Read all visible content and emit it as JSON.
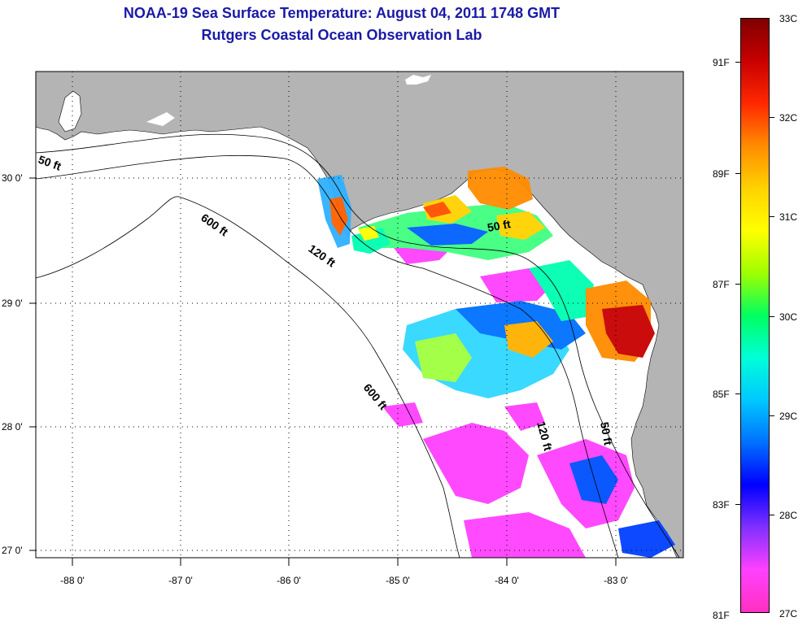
{
  "header": {
    "title_line1": "NOAA-19 Sea Surface Temperature:  August 04, 2011 1748 GMT",
    "title_line2": "Rutgers Coastal Ocean Observation Lab"
  },
  "map": {
    "lat_labels": [
      "30 0'",
      "29 0'",
      "28 0'",
      "27 0'"
    ],
    "lon_labels": [
      "-88 0'",
      "-87 0'",
      "-86 0'",
      "-85 0'",
      "-84 0'",
      "-83 0'"
    ],
    "contour_labels": {
      "c50_west": "50 ft",
      "c600_north": "600 ft",
      "c120_north": "120 ft",
      "c50_east": "50 ft",
      "c600_south": "600 ft",
      "c120_south": "120 ft",
      "c50_south": "50 ft"
    },
    "colors": {
      "land": "#b4b4b4",
      "ocean_nodata": "#ffffff"
    }
  },
  "colorbar": {
    "fahrenheit_labels": [
      "91F",
      "89F",
      "87F",
      "85F",
      "83F",
      "81F"
    ],
    "celsius_labels": [
      "33C",
      "32C",
      "31C",
      "30C",
      "29C",
      "28C",
      "27C"
    ],
    "scale_colors": [
      "#800000",
      "#c80000",
      "#ff2800",
      "#ff8c00",
      "#ffd200",
      "#ffff00",
      "#a0ff00",
      "#00ff60",
      "#00ffd8",
      "#00c8ff",
      "#0070ff",
      "#0000ff",
      "#8030ff",
      "#ff40ff",
      "#ff30c0"
    ]
  }
}
